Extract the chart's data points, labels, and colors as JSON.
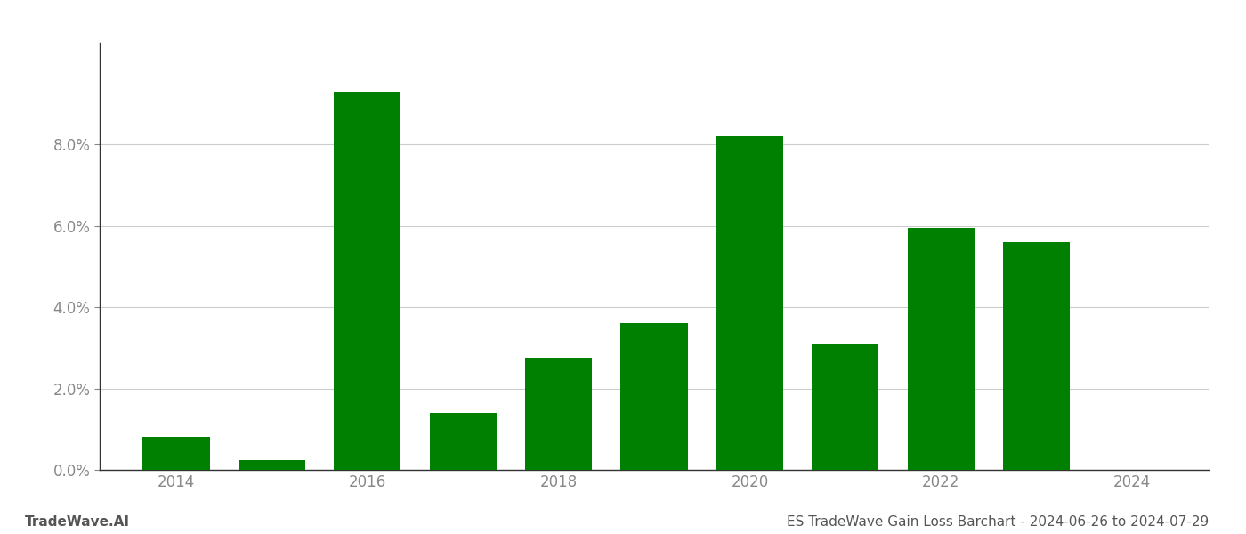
{
  "years": [
    2014,
    2015,
    2016,
    2017,
    2018,
    2019,
    2020,
    2021,
    2022,
    2023
  ],
  "values": [
    0.008,
    0.0025,
    0.093,
    0.014,
    0.0275,
    0.036,
    0.082,
    0.031,
    0.0595,
    0.056
  ],
  "bar_color": "#008000",
  "background_color": "#ffffff",
  "grid_color": "#cccccc",
  "tick_color": "#888888",
  "spine_color": "#333333",
  "footer_color": "#555555",
  "title_text": "ES TradeWave Gain Loss Barchart - 2024-06-26 to 2024-07-29",
  "watermark_text": "TradeWave.AI",
  "title_fontsize": 11,
  "watermark_fontsize": 11,
  "tick_fontsize": 12,
  "bar_width": 0.7,
  "ylim": [
    0,
    0.105
  ],
  "yticks": [
    0.0,
    0.02,
    0.04,
    0.06,
    0.08
  ],
  "xlim": [
    2013.2,
    2024.8
  ],
  "xticks": [
    2014,
    2016,
    2018,
    2020,
    2022,
    2024
  ]
}
